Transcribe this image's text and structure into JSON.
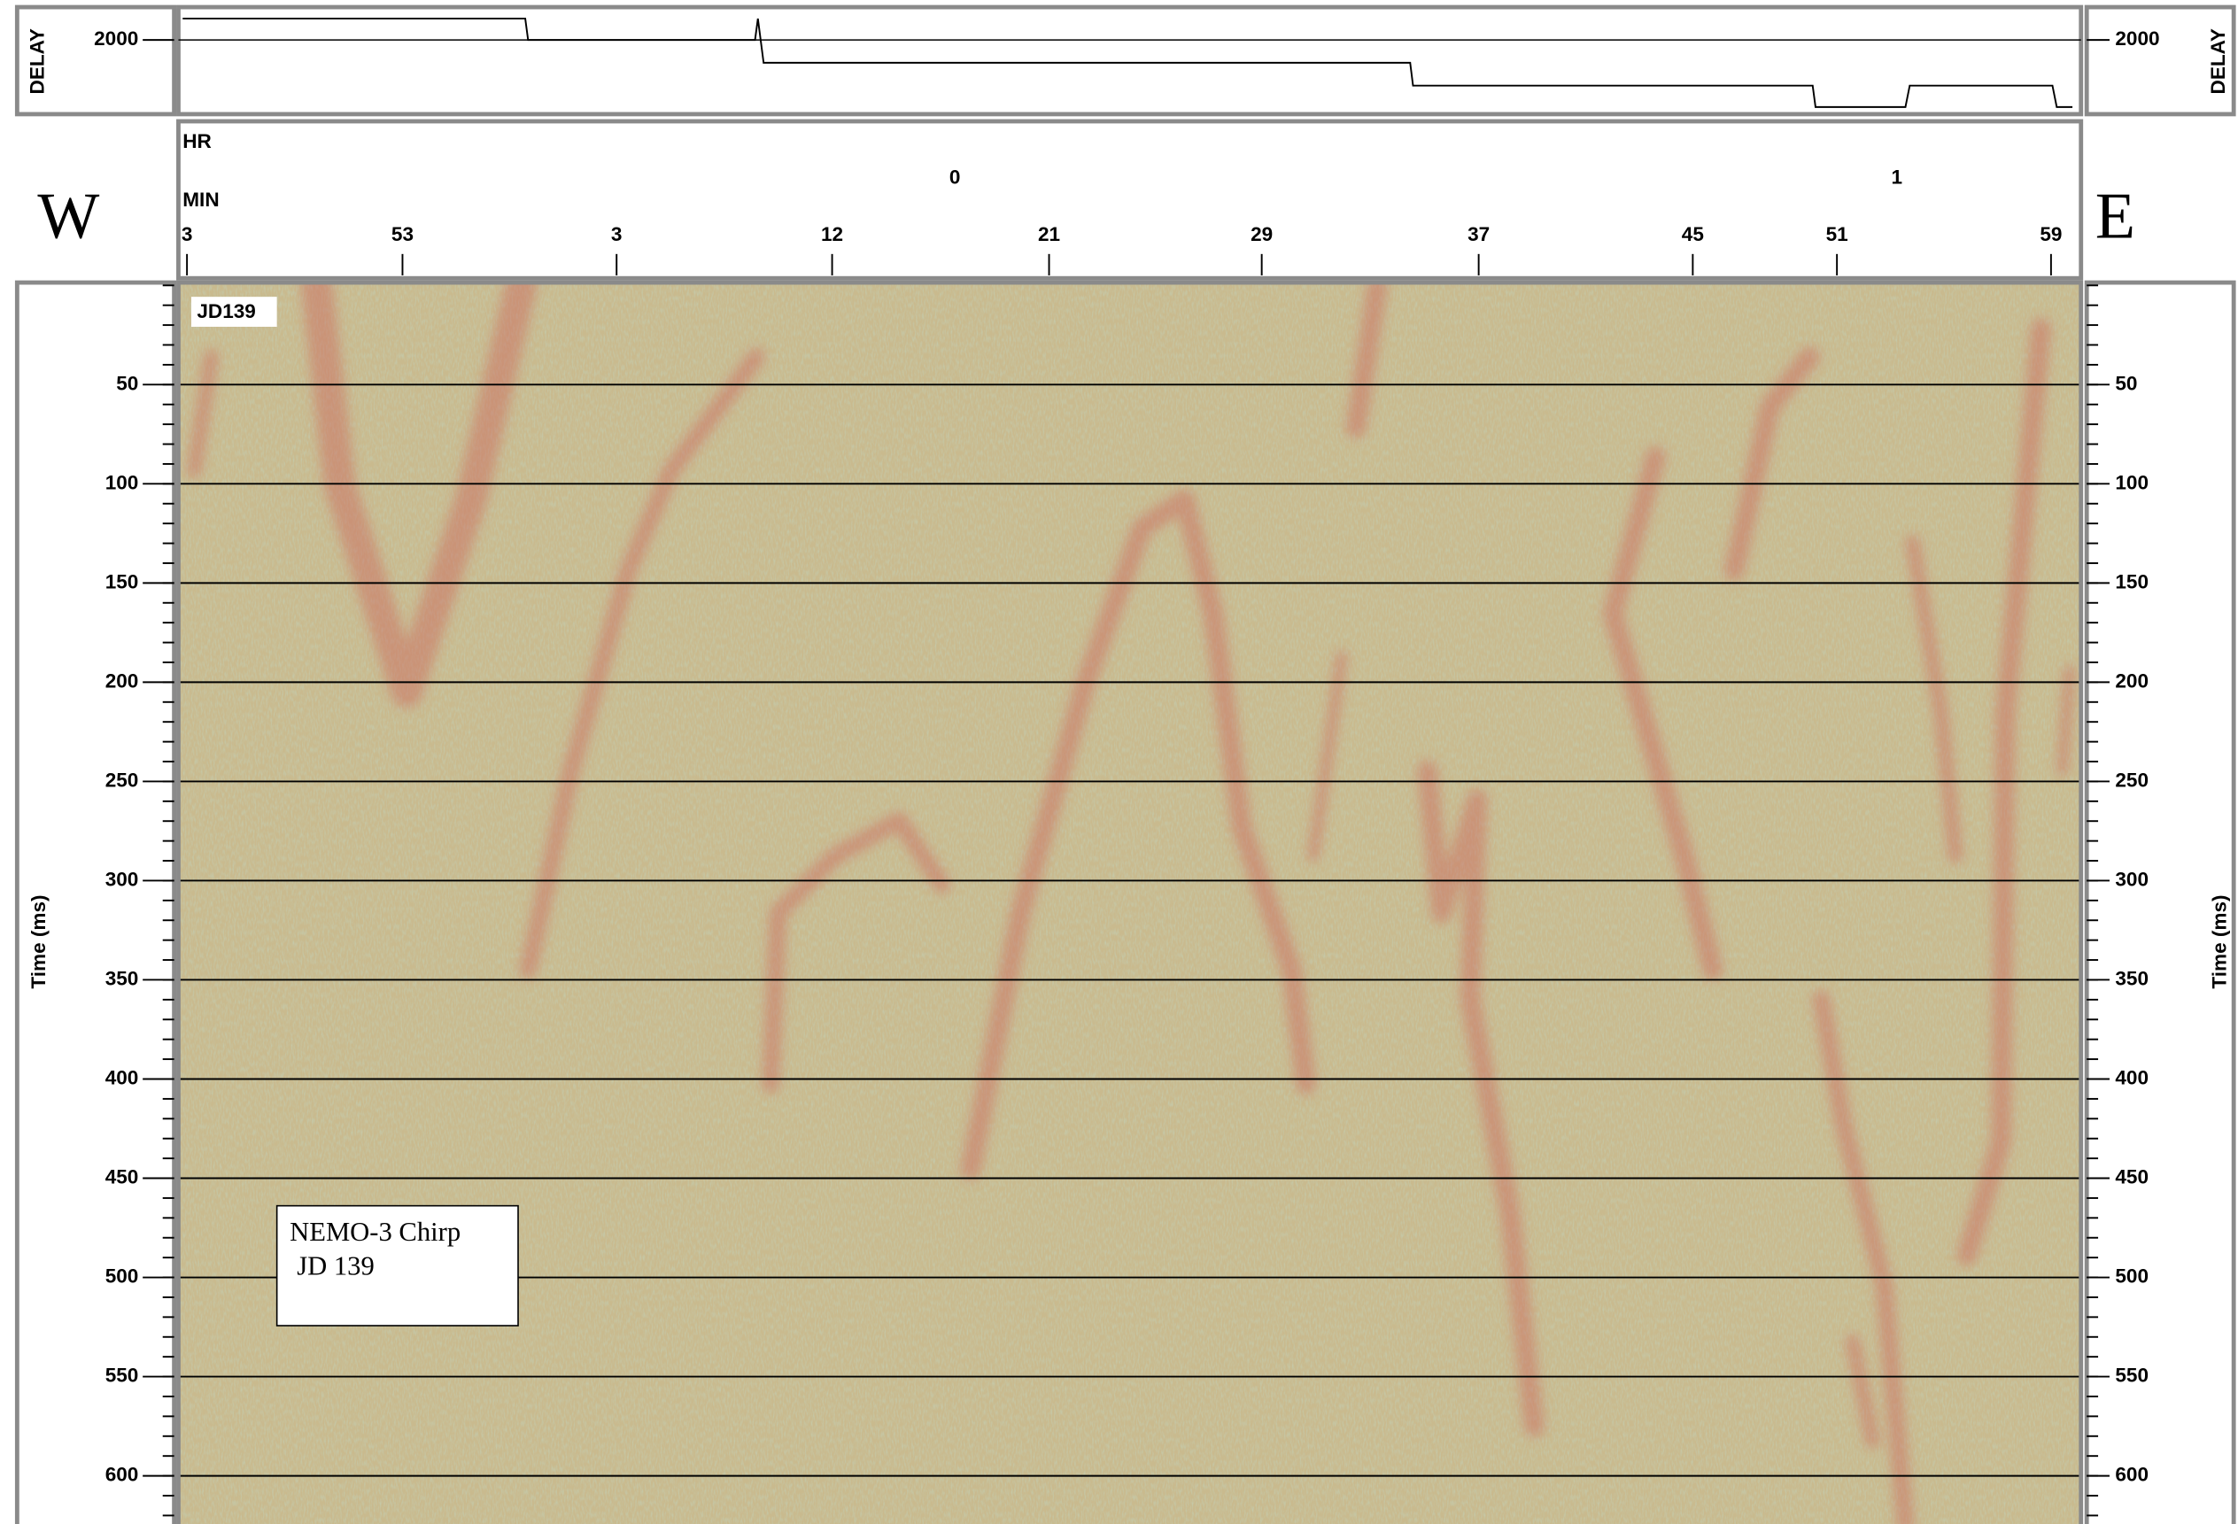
{
  "chart_data": {
    "type": "seismic",
    "delay_label": "DELAY",
    "delay_ticks": [
      2000
    ],
    "hour_label": "HR",
    "minute_label": "MIN",
    "hours": [
      0,
      1
    ],
    "minutes": [
      3,
      53,
      3,
      12,
      21,
      29,
      37,
      45,
      51,
      59
    ],
    "west": "W",
    "east": "E",
    "ylabel": "Time (ms)",
    "ylim": [
      0,
      625
    ],
    "yticks": [
      50,
      100,
      150,
      200,
      250,
      300,
      350,
      400,
      450,
      500,
      550,
      600
    ],
    "grid": true,
    "annotation": "JD139",
    "box_text": [
      "NEMO-3 Chirp",
      "JD 139"
    ]
  }
}
